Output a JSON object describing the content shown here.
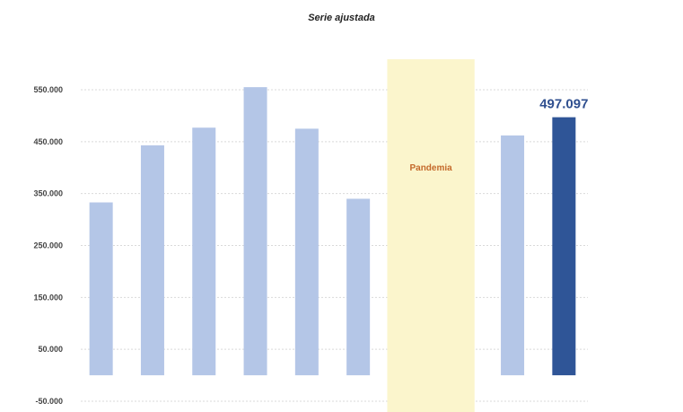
{
  "header": {
    "subtitle": "Serie ajustada"
  },
  "chart_data": {
    "type": "bar",
    "subtitle": "Serie ajustada",
    "categories": [
      "",
      "",
      "",
      "",
      "",
      "",
      "",
      "",
      "",
      ""
    ],
    "values": [
      333000,
      443000,
      477000,
      555000,
      475000,
      340000,
      null,
      null,
      462000,
      497097
    ],
    "ylim": [
      -50000,
      550000
    ],
    "yticks": [
      -50000,
      50000,
      150000,
      250000,
      350000,
      450000,
      550000
    ],
    "ytick_labels": [
      "-50.000",
      "50.000",
      "150.000",
      "250.000",
      "350.000",
      "450.000",
      "550.000"
    ],
    "grid": true,
    "highlight_index": 9,
    "data_labels": [
      {
        "index": 9,
        "text": "497.097"
      }
    ],
    "shaded_band": {
      "start_index": 6,
      "end_index": 7,
      "label": "Pandemia"
    },
    "colors": {
      "bar": "#b4c6e7",
      "highlight": "#2f5597",
      "band": "#fbf5cc",
      "band_label": "#c4692a",
      "data_label": "#2f4f8f",
      "grid": "#d9d9d9"
    }
  }
}
